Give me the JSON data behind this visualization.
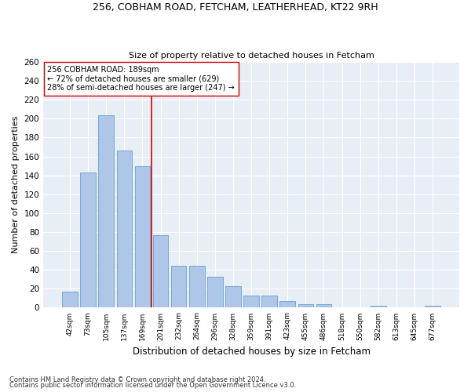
{
  "title1": "256, COBHAM ROAD, FETCHAM, LEATHERHEAD, KT22 9RH",
  "title2": "Size of property relative to detached houses in Fetcham",
  "xlabel": "Distribution of detached houses by size in Fetcham",
  "ylabel": "Number of detached properties",
  "footnote1": "Contains HM Land Registry data © Crown copyright and database right 2024.",
  "footnote2": "Contains public sector information licensed under the Open Government Licence v3.0.",
  "bar_labels": [
    "42sqm",
    "73sqm",
    "105sqm",
    "137sqm",
    "169sqm",
    "201sqm",
    "232sqm",
    "264sqm",
    "296sqm",
    "328sqm",
    "359sqm",
    "391sqm",
    "423sqm",
    "455sqm",
    "486sqm",
    "518sqm",
    "550sqm",
    "582sqm",
    "613sqm",
    "645sqm",
    "677sqm"
  ],
  "bar_values": [
    17,
    143,
    204,
    166,
    150,
    77,
    44,
    44,
    33,
    23,
    13,
    13,
    7,
    4,
    4,
    0,
    0,
    2,
    0,
    0,
    2
  ],
  "bar_color": "#aec6e8",
  "bar_edge_color": "#6a9fd0",
  "annotation_line1": "256 COBHAM ROAD: 189sqm",
  "annotation_line2": "← 72% of detached houses are smaller (629)",
  "annotation_line3": "28% of semi-detached houses are larger (247) →",
  "vline_x": 4.5,
  "vline_color": "#cc0000",
  "annotation_box_color": "#ffffff",
  "annotation_box_edge": "#cc0000",
  "background_color": "#e8eef5",
  "ylim": [
    0,
    260
  ],
  "yticks": [
    0,
    20,
    40,
    60,
    80,
    100,
    120,
    140,
    160,
    180,
    200,
    220,
    240,
    260
  ],
  "figwidth": 6.0,
  "figheight": 5.0,
  "dpi": 100
}
